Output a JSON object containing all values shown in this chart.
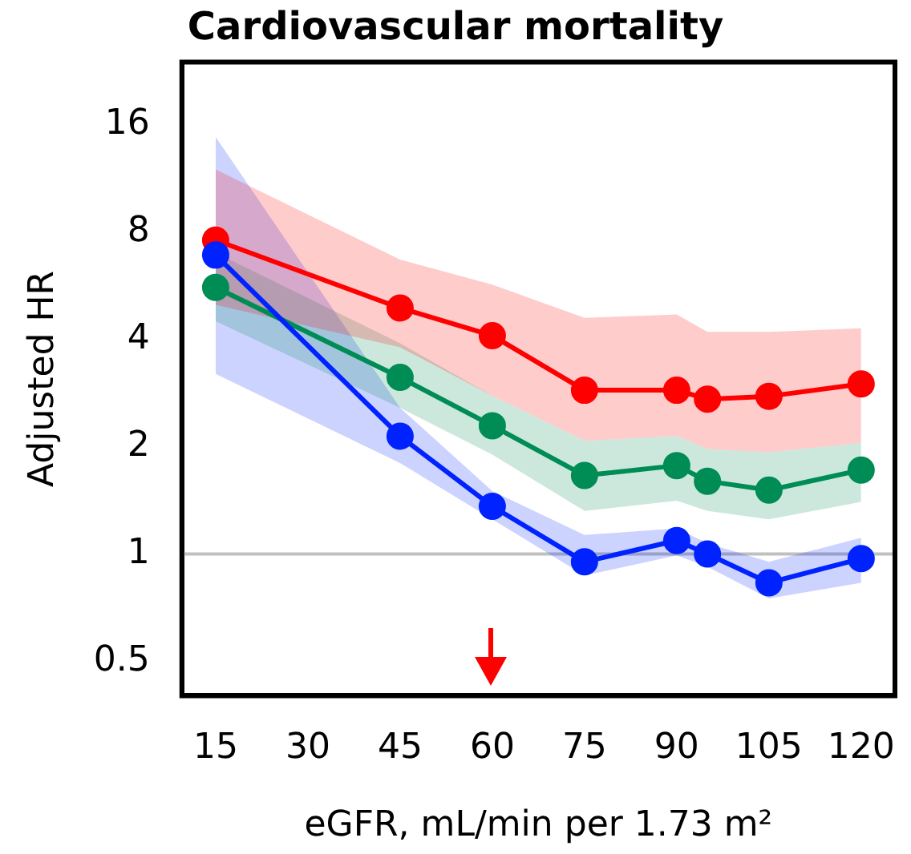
{
  "chart_data": {
    "type": "line",
    "title": "Cardiovascular mortality",
    "xlabel": "eGFR, mL/min per 1.73 m²",
    "ylabel": "Adjusted HR",
    "x": [
      15,
      45,
      60,
      75,
      90,
      95,
      105,
      120
    ],
    "series": [
      {
        "color": "#ff0000",
        "values": [
          7.6,
          4.9,
          4.1,
          2.88,
          2.88,
          2.72,
          2.77,
          3.0
        ],
        "lower": [
          5.0,
          3.8,
          2.78,
          2.08,
          2.14,
          1.97,
          1.93,
          2.05
        ],
        "upper": [
          12,
          6.7,
          5.7,
          4.6,
          4.7,
          4.2,
          4.2,
          4.3
        ]
      },
      {
        "color": "#008c55",
        "values": [
          5.6,
          3.13,
          2.29,
          1.66,
          1.77,
          1.6,
          1.51,
          1.72
        ],
        "lower": [
          4.5,
          2.57,
          1.9,
          1.32,
          1.41,
          1.32,
          1.25,
          1.4
        ],
        "upper": [
          7.0,
          3.9,
          2.78,
          2.08,
          2.14,
          1.97,
          1.93,
          2.05
        ]
      },
      {
        "color": "#0022ff",
        "values": [
          6.9,
          2.14,
          1.36,
          0.95,
          1.09,
          1.0,
          0.83,
          0.97
        ],
        "lower": [
          3.2,
          1.8,
          1.25,
          0.87,
          0.99,
          0.92,
          0.75,
          0.83
        ],
        "upper": [
          14.8,
          2.57,
          1.5,
          1.13,
          1.18,
          1.07,
          0.95,
          1.11
        ]
      }
    ],
    "xlim": [
      9.5,
      125.5
    ],
    "xticks": [
      15,
      30,
      45,
      60,
      75,
      90,
      105,
      120
    ],
    "ylim": [
      0.4,
      24
    ],
    "yticks": [
      0.5,
      1,
      2,
      4,
      8,
      16
    ],
    "log": "y",
    "ref_lines": [
      {
        "axis": "y",
        "value": 1,
        "color": "#c0c0c0"
      }
    ],
    "grid": false,
    "legend": false,
    "marker": "circle",
    "line_style": "solid"
  }
}
